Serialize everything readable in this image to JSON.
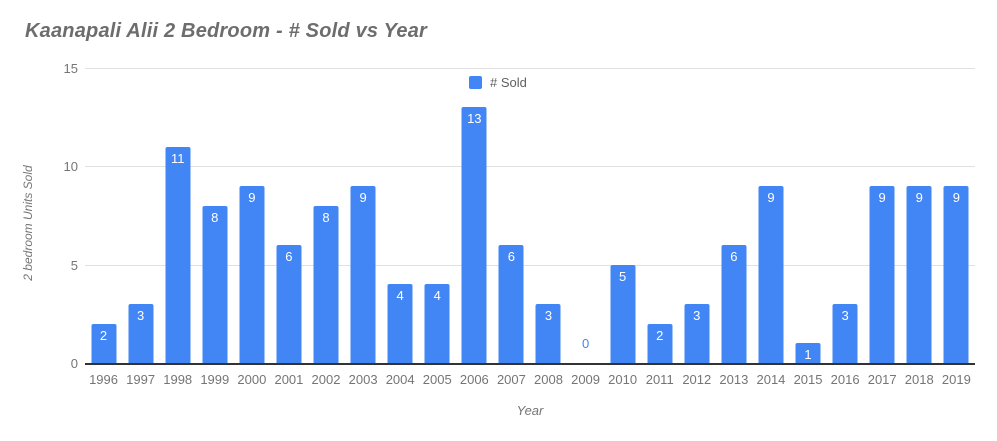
{
  "colors": {
    "background": "#ffffff",
    "bar": "#4285f4",
    "bar_label": "#ffffff",
    "zero_label": "#4285f4",
    "title_text": "#6d6d6d",
    "axis_text": "#757575",
    "legend_text": "#616161",
    "gridline": "#e0e0e0",
    "baseline": "#333333"
  },
  "chart_data": {
    "type": "bar",
    "title": "Kaanapali Alii 2 Bedroom - # Sold vs Year",
    "xlabel": "Year",
    "ylabel": "2 bedroom Units Sold",
    "categories": [
      "1996",
      "1997",
      "1998",
      "1999",
      "2000",
      "2001",
      "2002",
      "2003",
      "2004",
      "2005",
      "2006",
      "2007",
      "2008",
      "2009",
      "2010",
      "2011",
      "2012",
      "2013",
      "2014",
      "2015",
      "2016",
      "2017",
      "2018",
      "2019"
    ],
    "series": [
      {
        "name": "# Sold",
        "values": [
          2,
          3,
          11,
          8,
          9,
          6,
          8,
          9,
          4,
          4,
          13,
          6,
          3,
          0,
          5,
          2,
          3,
          6,
          9,
          1,
          3,
          9,
          9,
          9
        ]
      }
    ],
    "ylim": [
      0,
      15
    ],
    "yticks": [
      0,
      5,
      10,
      15
    ],
    "grid": true,
    "legend_position": "top-center",
    "bar_labels": "values shown inside top of bars in white; zero values shown in blue above axis"
  }
}
